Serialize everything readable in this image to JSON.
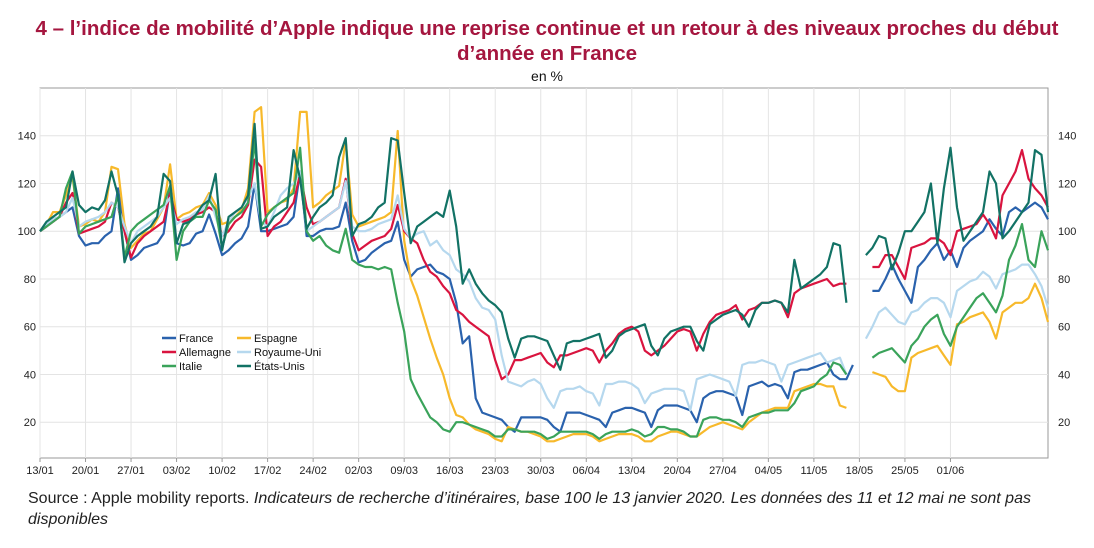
{
  "title": "4 – l’indice de mobilité d’Apple indique une reprise continue et un retour à des niveaux proches du début d’année en France",
  "subtitle": "en %",
  "source_lead": "Source : Apple mobility reports.",
  "source_rest": " Indicateurs de recherche d’itinéraires, base 100 le 13 janvier 2020. Les données des 11 et 12 mai ne sont pas disponibles",
  "colors": {
    "France": "#2a62ad",
    "Espagne": "#f7b92b",
    "Allemagne": "#d9143f",
    "Royaume-Uni": "#b6d8ee",
    "Italie": "#3aa35a",
    "États-Unis": "#127265"
  },
  "chart_data": {
    "type": "line",
    "ylim": [
      5,
      160
    ],
    "yticks": [
      20,
      40,
      60,
      80,
      100,
      120,
      140
    ],
    "x_start": "13/01",
    "x_end": "07/06",
    "gap": [
      "11/05",
      "12/05"
    ],
    "xticks": [
      "13/01",
      "20/01",
      "27/01",
      "03/02",
      "10/02",
      "17/02",
      "24/02",
      "02/03",
      "09/03",
      "16/03",
      "23/03",
      "30/03",
      "06/04",
      "13/04",
      "20/04",
      "27/04",
      "04/05",
      "11/05",
      "18/05",
      "25/05",
      "01/06"
    ],
    "legend": [
      "France",
      "Espagne",
      "Allemagne",
      "Royaume-Uni",
      "Italie",
      "États-Unis"
    ],
    "legend_position": "left-middle",
    "series": [
      {
        "name": "France",
        "values": [
          100,
          102,
          105,
          106,
          108,
          110,
          98,
          94,
          95,
          95,
          98,
          100,
          118,
          100,
          88,
          90,
          93,
          94,
          95,
          99,
          118,
          95,
          94,
          95,
          99,
          100,
          107,
          99,
          90,
          92,
          95,
          97,
          102,
          120,
          100,
          100,
          101,
          102,
          103,
          106,
          125,
          98,
          98,
          100,
          101,
          101,
          102,
          112,
          96,
          87,
          88,
          91,
          93,
          95,
          96,
          104,
          88,
          81,
          84,
          85,
          86,
          83,
          82,
          80,
          70,
          53,
          56,
          30,
          24,
          23,
          22,
          21,
          18,
          16,
          22,
          22,
          22,
          22,
          21,
          18,
          16,
          24,
          24,
          24,
          23,
          22,
          21,
          18,
          24,
          25,
          26,
          26,
          25,
          24,
          18,
          25,
          27,
          27,
          27,
          26,
          25,
          20,
          30,
          32,
          33,
          33,
          32,
          31,
          23,
          35,
          36,
          37,
          35,
          36,
          35,
          30,
          41,
          42,
          42,
          43,
          44,
          45,
          40,
          38,
          38,
          44,
          null,
          null,
          75,
          75,
          80,
          86,
          80,
          75,
          70,
          85,
          88,
          92,
          95,
          88,
          92,
          85,
          93,
          96,
          98,
          100,
          105,
          101,
          98,
          108,
          110,
          108,
          110,
          112,
          110,
          105
        ]
      },
      {
        "name": "Espagne",
        "values": [
          100,
          103,
          108,
          108,
          115,
          123,
          102,
          103,
          105,
          104,
          108,
          127,
          126,
          103,
          93,
          96,
          99,
          100,
          105,
          110,
          128,
          105,
          107,
          108,
          110,
          111,
          116,
          111,
          103,
          104,
          106,
          109,
          118,
          150,
          152,
          108,
          110,
          112,
          113,
          118,
          150,
          150,
          110,
          112,
          115,
          117,
          119,
          138,
          107,
          102,
          103,
          104,
          105,
          106,
          108,
          142,
          96,
          80,
          73,
          64,
          55,
          47,
          40,
          30,
          23,
          22,
          19,
          17,
          16,
          15,
          13,
          12,
          18,
          17,
          16,
          16,
          15,
          14,
          12,
          12,
          13,
          14,
          15,
          15,
          15,
          14,
          12,
          13,
          14,
          15,
          15,
          15,
          14,
          12,
          12,
          14,
          15,
          16,
          16,
          15,
          14,
          14,
          16,
          18,
          19,
          20,
          19,
          18,
          17,
          20,
          22,
          24,
          25,
          26,
          26,
          26,
          33,
          34,
          35,
          36,
          36,
          35,
          35,
          27,
          26,
          null,
          null,
          null,
          41,
          40,
          39,
          35,
          33,
          33,
          47,
          49,
          50,
          51,
          52,
          48,
          44,
          61,
          62,
          64,
          65,
          66,
          62,
          55,
          66,
          68,
          70,
          70,
          72,
          78,
          72,
          62
        ]
      },
      {
        "name": "Allemagne",
        "values": [
          100,
          102,
          104,
          106,
          112,
          116,
          99,
          100,
          101,
          102,
          104,
          112,
          110,
          100,
          89,
          95,
          98,
          100,
          102,
          104,
          116,
          105,
          104,
          105,
          107,
          108,
          110,
          108,
          98,
          100,
          104,
          106,
          111,
          130,
          127,
          98,
          102,
          104,
          108,
          112,
          124,
          110,
          103,
          104,
          106,
          108,
          110,
          122,
          99,
          92,
          94,
          96,
          97,
          98,
          101,
          111,
          100,
          97,
          95,
          88,
          83,
          81,
          77,
          74,
          67,
          65,
          62,
          60,
          58,
          56,
          46,
          38,
          40,
          46,
          46,
          47,
          48,
          49,
          45,
          43,
          48,
          48,
          49,
          50,
          51,
          50,
          45,
          50,
          53,
          57,
          59,
          60,
          58,
          50,
          48,
          50,
          52,
          55,
          58,
          59,
          58,
          50,
          57,
          62,
          65,
          66,
          67,
          69,
          63,
          67,
          68,
          70,
          70,
          71,
          70,
          64,
          74,
          76,
          77,
          78,
          79,
          80,
          77,
          78,
          78,
          null,
          null,
          null,
          85,
          85,
          90,
          90,
          85,
          80,
          93,
          94,
          95,
          97,
          97,
          95,
          90,
          100,
          101,
          102,
          103,
          107,
          103,
          97,
          115,
          120,
          125,
          134,
          122,
          118,
          115,
          110
        ]
      },
      {
        "name": "Royaume-Uni",
        "values": [
          100,
          103,
          105,
          106,
          108,
          114,
          102,
          104,
          105,
          106,
          108,
          112,
          110,
          102,
          95,
          100,
          102,
          104,
          106,
          110,
          114,
          103,
          105,
          106,
          108,
          109,
          115,
          106,
          98,
          104,
          108,
          110,
          114,
          120,
          104,
          102,
          108,
          115,
          118,
          120,
          125,
          100,
          102,
          104,
          106,
          108,
          110,
          121,
          102,
          100,
          100,
          101,
          103,
          104,
          105,
          115,
          101,
          97,
          99,
          100,
          94,
          96,
          92,
          90,
          84,
          82,
          79,
          72,
          68,
          67,
          63,
          48,
          37,
          36,
          35,
          37,
          38,
          36,
          30,
          26,
          33,
          34,
          34,
          35,
          33,
          32,
          27,
          36,
          36,
          37,
          37,
          36,
          34,
          28,
          32,
          33,
          34,
          34,
          34,
          33,
          25,
          38,
          39,
          40,
          39,
          38,
          37,
          31,
          44,
          45,
          45,
          46,
          45,
          44,
          37,
          44,
          45,
          46,
          47,
          48,
          49,
          45,
          46,
          47,
          40,
          null,
          null,
          55,
          60,
          66,
          68,
          65,
          62,
          61,
          66,
          67,
          70,
          72,
          72,
          70,
          64,
          75,
          77,
          79,
          80,
          83,
          81,
          76,
          82,
          83,
          84,
          86,
          86,
          82,
          77,
          68
        ]
      },
      {
        "name": "Italie",
        "values": [
          100,
          102,
          104,
          106,
          118,
          125,
          99,
          102,
          103,
          104,
          105,
          106,
          115,
          89,
          100,
          103,
          105,
          107,
          109,
          111,
          119,
          88,
          100,
          104,
          106,
          106,
          113,
          109,
          93,
          103,
          106,
          108,
          112,
          138,
          102,
          107,
          110,
          112,
          114,
          116,
          135,
          100,
          96,
          98,
          94,
          92,
          91,
          101,
          88,
          86,
          85,
          85,
          84,
          85,
          84,
          70,
          58,
          38,
          32,
          27,
          22,
          20,
          17,
          16,
          20,
          20,
          19,
          18,
          17,
          16,
          14,
          14,
          17,
          17,
          16,
          16,
          16,
          15,
          13,
          14,
          16,
          16,
          16,
          16,
          16,
          15,
          13,
          15,
          16,
          16,
          16,
          17,
          16,
          14,
          15,
          18,
          18,
          17,
          17,
          16,
          14,
          14,
          21,
          22,
          22,
          21,
          21,
          20,
          18,
          22,
          23,
          24,
          24,
          25,
          25,
          25,
          28,
          33,
          34,
          35,
          38,
          40,
          45,
          44,
          40,
          null,
          null,
          null,
          47,
          49,
          50,
          51,
          48,
          45,
          52,
          55,
          60,
          63,
          65,
          57,
          52,
          60,
          64,
          68,
          72,
          74,
          70,
          66,
          73,
          88,
          94,
          103,
          88,
          85,
          100,
          92
        ]
      },
      {
        "name": "États-Unis",
        "values": [
          100,
          104,
          106,
          108,
          110,
          125,
          111,
          108,
          110,
          109,
          113,
          125,
          115,
          87,
          95,
          98,
          100,
          102,
          106,
          124,
          121,
          95,
          103,
          104,
          107,
          111,
          113,
          124,
          92,
          106,
          108,
          110,
          115,
          145,
          101,
          102,
          106,
          108,
          110,
          134,
          122,
          101,
          106,
          110,
          112,
          115,
          131,
          139,
          98,
          103,
          104,
          106,
          110,
          112,
          139,
          138,
          116,
          95,
          102,
          104,
          106,
          108,
          106,
          117,
          102,
          78,
          84,
          78,
          74,
          71,
          69,
          66,
          55,
          47,
          55,
          56,
          56,
          55,
          54,
          48,
          42,
          53,
          54,
          54,
          55,
          56,
          57,
          47,
          50,
          56,
          58,
          59,
          60,
          61,
          52,
          48,
          55,
          58,
          59,
          60,
          60,
          54,
          50,
          61,
          63,
          65,
          66,
          67,
          65,
          60,
          67,
          70,
          70,
          71,
          70,
          66,
          88,
          76,
          78,
          80,
          82,
          85,
          95,
          94,
          70,
          null,
          null,
          90,
          93,
          98,
          97,
          84,
          91,
          100,
          100,
          104,
          108,
          120,
          95,
          118,
          135,
          110,
          96,
          100,
          104,
          108,
          125,
          120,
          97,
          100,
          104,
          108,
          112,
          134,
          132,
          108
        ]
      }
    ]
  }
}
